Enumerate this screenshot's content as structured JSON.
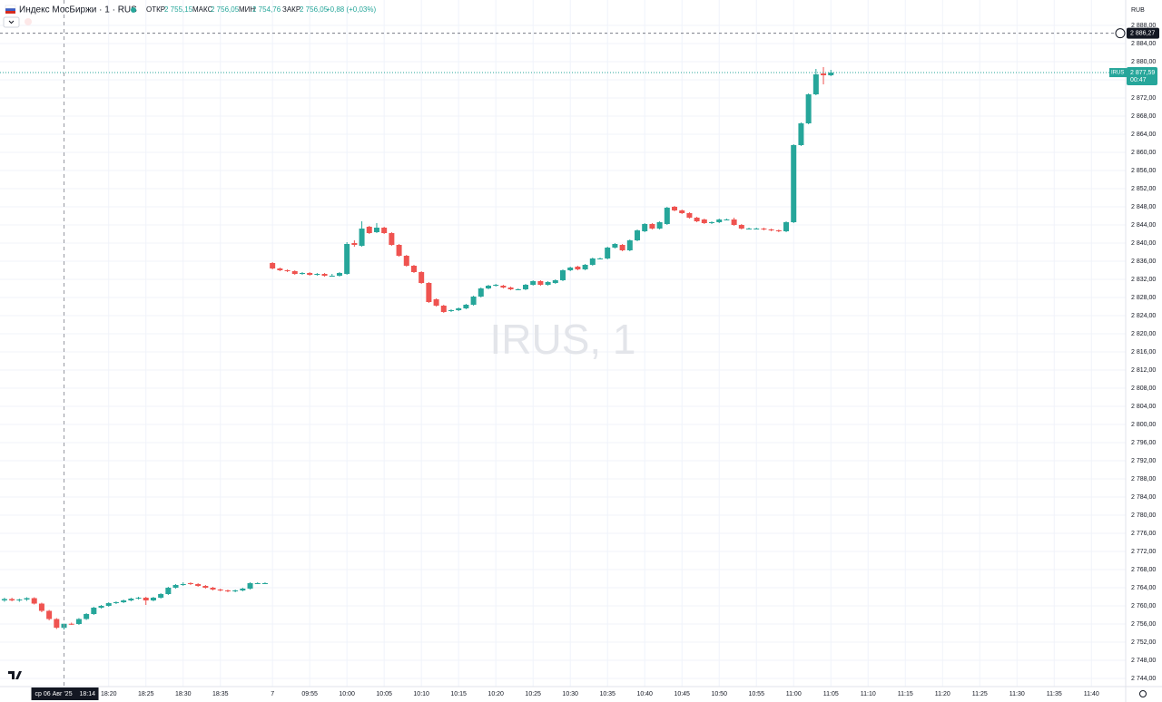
{
  "chart_data": {
    "type": "candlestick",
    "symbol": "Индекс МосБиржи · 1 · RUS",
    "legend": {
      "open_label": "ОТКР",
      "open": "2 755,15",
      "high_label": "МАКС",
      "high": "2 756,05",
      "low_label": "МИН",
      "low": "2 754,76",
      "close_label": "ЗАКР",
      "close": "2 756,05",
      "change": "+0,88 (+0,03%)"
    },
    "watermark": "IRUS, 1",
    "currency": "RUB",
    "up_color": "#26a69a",
    "down_color": "#ef5350",
    "grid": true,
    "ylim": [
      2742.2,
      2893.6
    ],
    "yticks": [
      {
        "value": 2744,
        "label": "2 744,00"
      },
      {
        "value": 2748,
        "label": "2 748,00"
      },
      {
        "value": 2752,
        "label": "2 752,00"
      },
      {
        "value": 2756,
        "label": "2 756,00"
      },
      {
        "value": 2760,
        "label": "2 760,00"
      },
      {
        "value": 2764,
        "label": "2 764,00"
      },
      {
        "value": 2768,
        "label": "2 768,00"
      },
      {
        "value": 2772,
        "label": "2 772,00"
      },
      {
        "value": 2776,
        "label": "2 776,00"
      },
      {
        "value": 2780,
        "label": "2 780,00"
      },
      {
        "value": 2784,
        "label": "2 784,00"
      },
      {
        "value": 2788,
        "label": "2 788,00"
      },
      {
        "value": 2792,
        "label": "2 792,00"
      },
      {
        "value": 2796,
        "label": "2 796,00"
      },
      {
        "value": 2800,
        "label": "2 800,00"
      },
      {
        "value": 2804,
        "label": "2 804,00"
      },
      {
        "value": 2808,
        "label": "2 808,00"
      },
      {
        "value": 2812,
        "label": "2 812,00"
      },
      {
        "value": 2816,
        "label": "2 816,00"
      },
      {
        "value": 2820,
        "label": "2 820,00"
      },
      {
        "value": 2824,
        "label": "2 824,00"
      },
      {
        "value": 2828,
        "label": "2 828,00"
      },
      {
        "value": 2832,
        "label": "2 832,00"
      },
      {
        "value": 2836,
        "label": "2 836,00"
      },
      {
        "value": 2840,
        "label": "2 840,00"
      },
      {
        "value": 2844,
        "label": "2 844,00"
      },
      {
        "value": 2848,
        "label": "2 848,00"
      },
      {
        "value": 2852,
        "label": "2 852,00"
      },
      {
        "value": 2856,
        "label": "2 856,00"
      },
      {
        "value": 2860,
        "label": "2 860,00"
      },
      {
        "value": 2864,
        "label": "2 864,00"
      },
      {
        "value": 2868,
        "label": "2 868,00"
      },
      {
        "value": 2872,
        "label": "2 872,00"
      },
      {
        "value": 2876,
        "label": "2 876,00"
      },
      {
        "value": 2880,
        "label": "2 880,00"
      },
      {
        "value": 2884,
        "label": "2 884,00"
      },
      {
        "value": 2888,
        "label": "2 888,00"
      }
    ],
    "xlim": [
      -0.6,
      150.6
    ],
    "xticks": [
      {
        "value": 14,
        "label": "18:20"
      },
      {
        "value": 19,
        "label": "18:25"
      },
      {
        "value": 24,
        "label": "18:30"
      },
      {
        "value": 29,
        "label": "18:35"
      },
      {
        "value": 36,
        "label": "7"
      },
      {
        "value": 41,
        "label": "09:55"
      },
      {
        "value": 46,
        "label": "10:00"
      },
      {
        "value": 51,
        "label": "10:05"
      },
      {
        "value": 56,
        "label": "10:10"
      },
      {
        "value": 61,
        "label": "10:15"
      },
      {
        "value": 66,
        "label": "10:20"
      },
      {
        "value": 71,
        "label": "10:25"
      },
      {
        "value": 76,
        "label": "10:30"
      },
      {
        "value": 81,
        "label": "10:35"
      },
      {
        "value": 86,
        "label": "10:40"
      },
      {
        "value": 91,
        "label": "10:45"
      },
      {
        "value": 96,
        "label": "10:50"
      },
      {
        "value": 101,
        "label": "10:55"
      },
      {
        "value": 106,
        "label": "11:00"
      },
      {
        "value": 111,
        "label": "11:05"
      },
      {
        "value": 116,
        "label": "11:10"
      },
      {
        "value": 121,
        "label": "11:15"
      },
      {
        "value": 126,
        "label": "11:20"
      },
      {
        "value": 131,
        "label": "11:25"
      },
      {
        "value": 136,
        "label": "11:30"
      },
      {
        "value": 141,
        "label": "11:35"
      },
      {
        "value": 146,
        "label": "11:40"
      }
    ],
    "crosshair": {
      "value": 8,
      "date": "ср 06 Авг '25",
      "time": "18:14"
    },
    "alert_line": {
      "value": 2886.27,
      "label": "2 886,27"
    },
    "last_price": {
      "value": 2877.59,
      "tag": "IRUS",
      "label": "2 877,59",
      "countdown": "00:47"
    },
    "ohlc": [
      [
        2761.2,
        2761.8,
        2760.9,
        2761.5
      ],
      [
        2761.5,
        2761.8,
        2761.0,
        2761.2
      ],
      [
        2761.2,
        2761.6,
        2760.9,
        2761.4
      ],
      [
        2761.4,
        2761.9,
        2761.1,
        2761.7
      ],
      [
        2761.7,
        2761.9,
        2760.3,
        2760.5
      ],
      [
        2760.5,
        2760.7,
        2758.6,
        2758.9
      ],
      [
        2758.9,
        2759.1,
        2756.8,
        2757.1
      ],
      [
        2757.1,
        2757.3,
        2754.9,
        2755.17
      ],
      [
        2755.15,
        2756.05,
        2754.76,
        2756.05
      ],
      [
        2756.05,
        2756.3,
        2755.8,
        2756.0
      ],
      [
        2756.0,
        2757.3,
        2755.8,
        2757.1
      ],
      [
        2757.1,
        2758.4,
        2756.9,
        2758.2
      ],
      [
        2758.2,
        2759.8,
        2758.0,
        2759.6
      ],
      [
        2759.6,
        2760.2,
        2759.4,
        2760.0
      ],
      [
        2760.0,
        2760.8,
        2759.8,
        2760.6
      ],
      [
        2760.6,
        2761.0,
        2760.4,
        2760.8
      ],
      [
        2760.8,
        2761.4,
        2760.6,
        2761.2
      ],
      [
        2761.2,
        2761.8,
        2761.0,
        2761.6
      ],
      [
        2761.6,
        2762.0,
        2761.4,
        2761.8
      ],
      [
        2761.8,
        2762.0,
        2760.2,
        2761.2
      ],
      [
        2761.2,
        2762.0,
        2761.0,
        2761.8
      ],
      [
        2761.8,
        2762.8,
        2761.6,
        2762.6
      ],
      [
        2762.6,
        2764.2,
        2762.4,
        2764.0
      ],
      [
        2764.0,
        2764.8,
        2763.8,
        2764.6
      ],
      [
        2764.6,
        2765.2,
        2764.4,
        2764.8
      ],
      [
        2765.0,
        2765.2,
        2764.6,
        2764.8
      ],
      [
        2764.8,
        2765.0,
        2764.2,
        2764.4
      ],
      [
        2764.4,
        2764.6,
        2763.8,
        2764.0
      ],
      [
        2764.0,
        2764.2,
        2763.4,
        2763.6
      ],
      [
        2763.6,
        2763.8,
        2763.2,
        2763.4
      ],
      [
        2763.4,
        2763.6,
        2763.0,
        2763.2
      ],
      [
        2763.2,
        2763.6,
        2763.0,
        2763.4
      ],
      [
        2763.4,
        2764.0,
        2763.2,
        2763.8
      ],
      [
        2763.8,
        2765.2,
        2763.6,
        2765.0
      ],
      [
        2765.0,
        2765.2,
        2764.8,
        2765.0
      ],
      [
        2765.0,
        2765.2,
        2764.8,
        2765.0
      ],
      [
        2835.6,
        2835.8,
        2834.2,
        2834.4
      ],
      [
        2834.4,
        2834.6,
        2833.8,
        2834.0
      ],
      [
        2834.0,
        2834.2,
        2833.6,
        2833.8
      ],
      [
        2833.8,
        2834.0,
        2833.0,
        2833.2
      ],
      [
        2833.2,
        2833.6,
        2833.0,
        2833.4
      ],
      [
        2833.4,
        2833.6,
        2832.8,
        2833.0
      ],
      [
        2833.0,
        2833.4,
        2832.8,
        2833.2
      ],
      [
        2833.2,
        2833.4,
        2832.6,
        2832.8
      ],
      [
        2832.8,
        2833.2,
        2832.6,
        2832.8
      ],
      [
        2832.8,
        2833.6,
        2832.6,
        2833.4
      ],
      [
        2833.2,
        2840.2,
        2833.0,
        2839.8
      ],
      [
        2840.0,
        2840.6,
        2839.2,
        2839.6
      ],
      [
        2839.4,
        2844.8,
        2839.2,
        2843.2
      ],
      [
        2843.6,
        2843.8,
        2842.0,
        2842.2
      ],
      [
        2842.4,
        2844.4,
        2842.2,
        2843.4
      ],
      [
        2843.4,
        2843.6,
        2842.0,
        2842.2
      ],
      [
        2842.2,
        2842.4,
        2839.4,
        2839.6
      ],
      [
        2839.6,
        2839.8,
        2837.0,
        2837.2
      ],
      [
        2837.2,
        2837.4,
        2834.8,
        2835.0
      ],
      [
        2835.0,
        2835.2,
        2833.4,
        2833.6
      ],
      [
        2833.6,
        2833.8,
        2831.0,
        2831.2
      ],
      [
        2831.2,
        2831.4,
        2826.8,
        2827.0
      ],
      [
        2827.6,
        2827.8,
        2826.0,
        2826.2
      ],
      [
        2826.2,
        2826.4,
        2824.6,
        2824.8
      ],
      [
        2825.0,
        2825.4,
        2824.8,
        2825.2
      ],
      [
        2825.2,
        2825.8,
        2825.0,
        2825.6
      ],
      [
        2825.6,
        2826.6,
        2825.4,
        2826.4
      ],
      [
        2826.4,
        2828.4,
        2826.2,
        2828.2
      ],
      [
        2828.2,
        2830.2,
        2828.0,
        2830.0
      ],
      [
        2830.0,
        2830.8,
        2829.8,
        2830.6
      ],
      [
        2830.6,
        2831.0,
        2830.4,
        2830.8
      ],
      [
        2830.6,
        2830.8,
        2830.0,
        2830.2
      ],
      [
        2830.2,
        2830.4,
        2829.6,
        2829.8
      ],
      [
        2829.8,
        2830.0,
        2829.6,
        2829.8
      ],
      [
        2829.8,
        2831.0,
        2829.6,
        2830.8
      ],
      [
        2830.8,
        2831.8,
        2830.6,
        2831.6
      ],
      [
        2831.6,
        2831.8,
        2830.6,
        2830.8
      ],
      [
        2830.8,
        2831.6,
        2830.6,
        2831.4
      ],
      [
        2831.2,
        2832.0,
        2831.0,
        2831.8
      ],
      [
        2831.8,
        2834.2,
        2831.6,
        2834.0
      ],
      [
        2834.0,
        2834.8,
        2833.8,
        2834.6
      ],
      [
        2834.8,
        2835.0,
        2834.0,
        2834.2
      ],
      [
        2834.2,
        2835.4,
        2834.0,
        2835.2
      ],
      [
        2835.2,
        2836.8,
        2835.0,
        2836.6
      ],
      [
        2836.6,
        2836.8,
        2836.4,
        2836.6
      ],
      [
        2836.6,
        2839.2,
        2836.4,
        2839.0
      ],
      [
        2839.0,
        2840.0,
        2838.8,
        2839.8
      ],
      [
        2839.6,
        2839.8,
        2838.2,
        2838.4
      ],
      [
        2838.4,
        2840.8,
        2838.2,
        2840.6
      ],
      [
        2840.6,
        2843.0,
        2840.4,
        2842.8
      ],
      [
        2842.6,
        2844.4,
        2842.4,
        2844.2
      ],
      [
        2844.2,
        2844.4,
        2843.0,
        2843.2
      ],
      [
        2843.2,
        2844.8,
        2843.0,
        2844.6
      ],
      [
        2844.2,
        2848.0,
        2844.0,
        2847.8
      ],
      [
        2848.0,
        2848.2,
        2847.0,
        2847.2
      ],
      [
        2847.2,
        2847.4,
        2846.4,
        2846.6
      ],
      [
        2846.6,
        2846.8,
        2845.4,
        2845.6
      ],
      [
        2845.6,
        2845.8,
        2844.6,
        2844.8
      ],
      [
        2845.2,
        2845.4,
        2844.2,
        2844.4
      ],
      [
        2844.4,
        2844.8,
        2844.2,
        2844.6
      ],
      [
        2844.6,
        2845.4,
        2844.4,
        2845.2
      ],
      [
        2845.2,
        2845.4,
        2845.0,
        2845.2
      ],
      [
        2845.2,
        2845.6,
        2843.8,
        2844.0
      ],
      [
        2844.0,
        2844.2,
        2843.0,
        2843.2
      ],
      [
        2843.2,
        2843.4,
        2843.0,
        2843.2
      ],
      [
        2843.2,
        2843.4,
        2843.0,
        2843.2
      ],
      [
        2843.2,
        2843.4,
        2842.8,
        2843.0
      ],
      [
        2843.0,
        2843.2,
        2842.6,
        2842.8
      ],
      [
        2842.8,
        2843.0,
        2842.4,
        2842.6
      ],
      [
        2842.6,
        2844.8,
        2842.4,
        2844.6
      ],
      [
        2844.6,
        2861.8,
        2844.4,
        2861.6
      ],
      [
        2861.6,
        2866.6,
        2861.4,
        2866.4
      ],
      [
        2866.4,
        2873.0,
        2866.2,
        2872.8
      ],
      [
        2872.8,
        2878.4,
        2872.6,
        2877.2
      ],
      [
        2877.4,
        2878.8,
        2875.0,
        2877.0
      ],
      [
        2877.0,
        2878.2,
        2876.8,
        2877.59
      ]
    ]
  }
}
